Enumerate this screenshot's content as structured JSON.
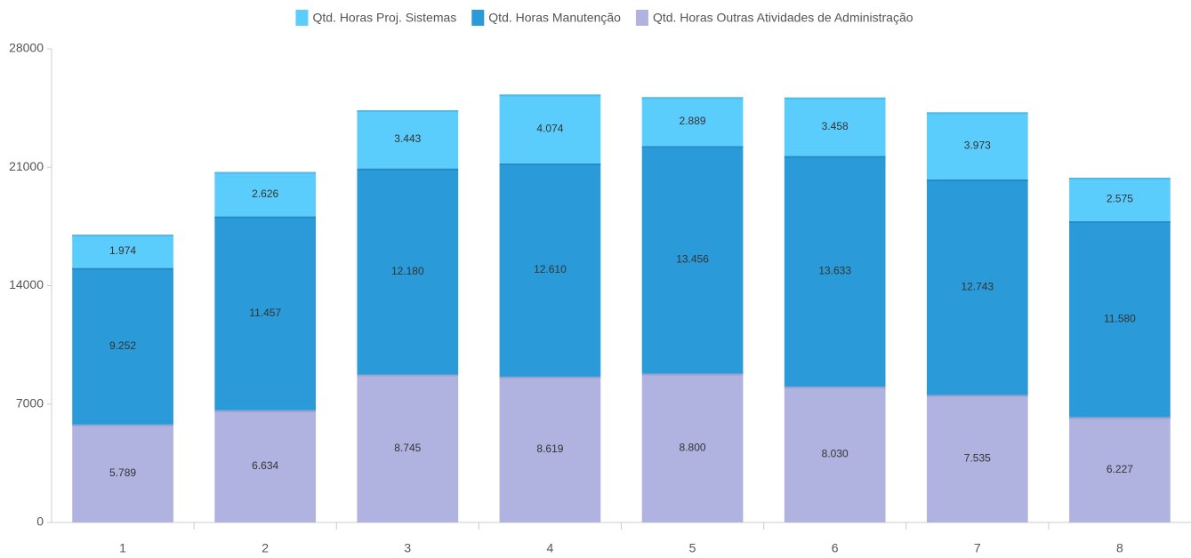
{
  "chart_data": {
    "type": "stacked_bar",
    "categories": [
      "1",
      "2",
      "3",
      "4",
      "5",
      "6",
      "7",
      "8"
    ],
    "series": [
      {
        "name": "Qtd. Horas Outras Atividades de Administração",
        "color": "#b0b3e0",
        "values": [
          5789,
          6634,
          8745,
          8619,
          8800,
          8030,
          7535,
          6227
        ],
        "value_labels": [
          "5.789",
          "6.634",
          "8.745",
          "8.619",
          "8.800",
          "8.030",
          "7.535",
          "6.227"
        ]
      },
      {
        "name": "Qtd. Horas Manutenção",
        "color": "#2a9ad8",
        "values": [
          9252,
          11457,
          12180,
          12610,
          13456,
          13633,
          12743,
          11580
        ],
        "value_labels": [
          "9.252",
          "11.457",
          "12.180",
          "12.610",
          "13.456",
          "13.633",
          "12.743",
          "11.580"
        ]
      },
      {
        "name": "Qtd. Horas Proj. Sistemas",
        "color": "#5bcdfd",
        "values": [
          1974,
          2626,
          3443,
          4074,
          2889,
          3458,
          3973,
          2575
        ],
        "value_labels": [
          "1.974",
          "2.626",
          "3.443",
          "4.074",
          "2.889",
          "3.458",
          "3.973",
          "2.575"
        ]
      }
    ],
    "ylim": [
      0,
      28000
    ],
    "yticks": [
      0,
      7000,
      14000,
      21000,
      28000
    ],
    "legend_order": [
      2,
      1,
      0
    ]
  }
}
